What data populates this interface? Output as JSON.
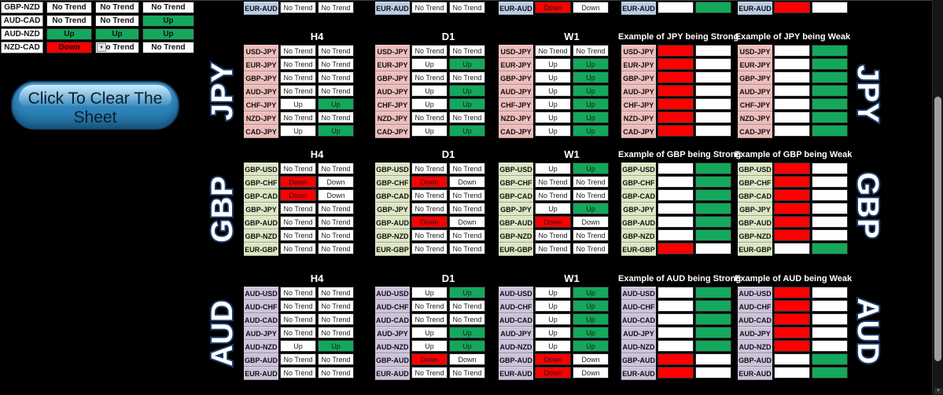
{
  "colors": {
    "up_green": "#14A85C",
    "down_red": "#FE0000"
  },
  "button": {
    "label": "Click To Clear The Sheet"
  },
  "status_styles": {
    "NT": {
      "c1": {
        "text": "No Trend",
        "bg": "white"
      },
      "c2": {
        "text": "No Trend",
        "bg": "white"
      }
    },
    "UP": {
      "c1": {
        "text": "Up",
        "bg": "white"
      },
      "c2": {
        "text": "Up",
        "bg": "green"
      }
    },
    "DOWN": {
      "c1": {
        "text": "Down",
        "bg": "red"
      },
      "c2": {
        "text": "Down",
        "bg": "white"
      }
    },
    "EX_UP": {
      "c1": {
        "text": "",
        "bg": "white"
      },
      "c2": {
        "text": "",
        "bg": "green"
      }
    },
    "EX_DOWN": {
      "c1": {
        "text": "",
        "bg": "red"
      },
      "c2": {
        "text": "",
        "bg": "white"
      }
    }
  },
  "cross_table": {
    "rows": [
      {
        "pair": "GBP-NZD",
        "cells": [
          {
            "text": "No Trend",
            "bg": "white"
          },
          {
            "text": "No Trend",
            "bg": "white"
          },
          {
            "text": "No Trend",
            "bg": "white"
          }
        ]
      },
      {
        "pair": "AUD-CAD",
        "cells": [
          {
            "text": "No Trend",
            "bg": "white"
          },
          {
            "text": "No Trend",
            "bg": "white"
          },
          {
            "text": "Up",
            "bg": "green"
          }
        ]
      },
      {
        "pair": "AUD-NZD",
        "cells": [
          {
            "text": "Up",
            "bg": "green"
          },
          {
            "text": "Up",
            "bg": "green"
          },
          {
            "text": "Up",
            "bg": "green"
          }
        ]
      },
      {
        "pair": "NZD-CAD",
        "cells": [
          {
            "text": "Down",
            "bg": "red"
          },
          {
            "text": "No Trend",
            "bg": "white",
            "dropdown": true
          },
          {
            "text": "No Trend",
            "bg": "white"
          }
        ]
      }
    ]
  },
  "eur_row": {
    "pair": "EUR-AUD",
    "label_bg": "#B9CCE4",
    "statuses": [
      "NT",
      "NT",
      "DOWN",
      "EX_UP",
      "EX_DOWN"
    ]
  },
  "sections": [
    {
      "name": "JPY",
      "side_label": "JPY",
      "label_bg": "#EDBDBB",
      "pairs": [
        "USD-JPY",
        "EUR-JPY",
        "GBP-JPY",
        "AUD-JPY",
        "CHF-JPY",
        "NZD-JPY",
        "CAD-JPY"
      ],
      "tables": [
        {
          "title": "H4",
          "type": "trend",
          "rows": [
            "NT",
            "NT",
            "NT",
            "NT",
            "UP",
            "NT",
            "UP"
          ]
        },
        {
          "title": "D1",
          "type": "trend",
          "rows": [
            "NT",
            "UP",
            "NT",
            "UP",
            "UP",
            "NT",
            "UP"
          ]
        },
        {
          "title": "W1",
          "type": "trend",
          "rows": [
            "NT",
            "UP",
            "UP",
            "UP",
            "UP",
            "UP",
            "UP"
          ]
        },
        {
          "title": "Example of JPY being Strong",
          "type": "example",
          "rows": [
            "EX_DOWN",
            "EX_DOWN",
            "EX_DOWN",
            "EX_DOWN",
            "EX_DOWN",
            "EX_DOWN",
            "EX_DOWN"
          ]
        },
        {
          "title": "Example of JPY being Weak",
          "type": "example",
          "rows": [
            "EX_UP",
            "EX_UP",
            "EX_UP",
            "EX_UP",
            "EX_UP",
            "EX_UP",
            "EX_UP"
          ]
        }
      ]
    },
    {
      "name": "GBP",
      "side_label": "GBP",
      "label_bg": "#DCE6C3",
      "pairs": [
        "GBP-USD",
        "GBP-CHF",
        "GBP-CAD",
        "GBP-JPY",
        "GBP-AUD",
        "GBP-NZD",
        "EUR-GBP"
      ],
      "tables": [
        {
          "title": "H4",
          "type": "trend",
          "rows": [
            "NT",
            "DOWN",
            "DOWN",
            "NT",
            "NT",
            "NT",
            "NT"
          ]
        },
        {
          "title": "D1",
          "type": "trend",
          "rows": [
            "NT",
            "DOWN",
            "NT",
            "NT",
            "DOWN",
            "NT",
            "NT"
          ]
        },
        {
          "title": "W1",
          "type": "trend",
          "rows": [
            "UP",
            "NT",
            "NT",
            "UP",
            "DOWN",
            "NT",
            "NT"
          ]
        },
        {
          "title": "Example of GBP being Strong",
          "type": "example",
          "rows": [
            "EX_UP",
            "EX_UP",
            "EX_UP",
            "EX_UP",
            "EX_UP",
            "EX_UP",
            "EX_DOWN"
          ]
        },
        {
          "title": "Example of GBP being Weak",
          "type": "example",
          "rows": [
            "EX_DOWN",
            "EX_DOWN",
            "EX_DOWN",
            "EX_DOWN",
            "EX_DOWN",
            "EX_DOWN",
            "EX_UP"
          ]
        }
      ]
    },
    {
      "name": "AUD",
      "side_label": "AUD",
      "label_bg": "#CDC2DB",
      "pairs": [
        "AUD-USD",
        "AUD-CHF",
        "AUD-CAD",
        "AUD-JPY",
        "AUD-NZD",
        "GBP-AUD",
        "EUR-AUD"
      ],
      "tables": [
        {
          "title": "H4",
          "type": "trend",
          "rows": [
            "NT",
            "NT",
            "NT",
            "NT",
            "UP",
            "NT",
            "NT"
          ]
        },
        {
          "title": "D1",
          "type": "trend",
          "rows": [
            "UP",
            "NT",
            "NT",
            "UP",
            "UP",
            "DOWN",
            "NT"
          ]
        },
        {
          "title": "W1",
          "type": "trend",
          "rows": [
            "UP",
            "UP",
            "UP",
            "UP",
            "UP",
            "DOWN",
            "DOWN"
          ]
        },
        {
          "title": "Example of AUD being Strong",
          "type": "example",
          "rows": [
            "EX_UP",
            "EX_UP",
            "EX_UP",
            "EX_UP",
            "EX_UP",
            "EX_DOWN",
            "EX_DOWN"
          ]
        },
        {
          "title": "Example of AUD being Weak",
          "type": "example",
          "rows": [
            "EX_DOWN",
            "EX_DOWN",
            "EX_DOWN",
            "EX_DOWN",
            "EX_DOWN",
            "EX_UP",
            "EX_UP"
          ]
        }
      ]
    }
  ]
}
